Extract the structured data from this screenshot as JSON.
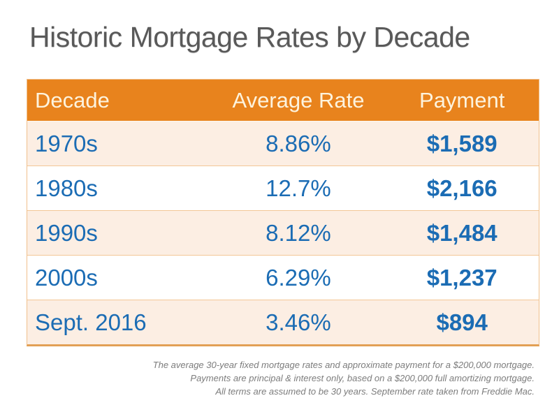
{
  "title": "Historic Mortgage Rates by Decade",
  "table": {
    "columns": [
      "Decade",
      "Average Rate",
      "Payment"
    ],
    "rows": [
      {
        "decade": "1970s",
        "rate": "8.86%",
        "payment": "$1,589"
      },
      {
        "decade": "1980s",
        "rate": "12.7%",
        "payment": "$2,166"
      },
      {
        "decade": "1990s",
        "rate": "8.12%",
        "payment": "$1,484"
      },
      {
        "decade": "2000s",
        "rate": "6.29%",
        "payment": "$1,237"
      },
      {
        "decade": "Sept. 2016",
        "rate": "3.46%",
        "payment": "$894"
      }
    ]
  },
  "footnotes": [
    "The average 30-year fixed mortgage rates and approximate payment for a $200,000 mortgage.",
    "Payments are principal & interest only, based on a $200,000 full amortizing mortgage.",
    "All terms are assumed to be 30 years. September rate taken from Freddie Mac."
  ],
  "colors": {
    "header_background": "#e8831d",
    "header_text": "#fdf3dd",
    "row_peach": "#fceee3",
    "row_white": "#ffffff",
    "row_border": "#f3c695",
    "value_text": "#1b6cb4",
    "title_text": "#595959",
    "footnote_text": "#7c7c7c"
  },
  "chart_data": {
    "type": "table",
    "title": "Historic Mortgage Rates by Decade",
    "columns": [
      "Decade",
      "Average Rate",
      "Payment"
    ],
    "rows": [
      [
        "1970s",
        "8.86%",
        "$1,589"
      ],
      [
        "1980s",
        "12.7%",
        "$2,166"
      ],
      [
        "1990s",
        "8.12%",
        "$1,484"
      ],
      [
        "2000s",
        "6.29%",
        "$1,237"
      ],
      [
        "Sept. 2016",
        "3.46%",
        "$894"
      ]
    ],
    "notes": "Average 30-year fixed mortgage rate per decade and approximate monthly principal & interest payment on a $200,000 fully amortizing 30-year mortgage; September 2016 rate from Freddie Mac."
  }
}
